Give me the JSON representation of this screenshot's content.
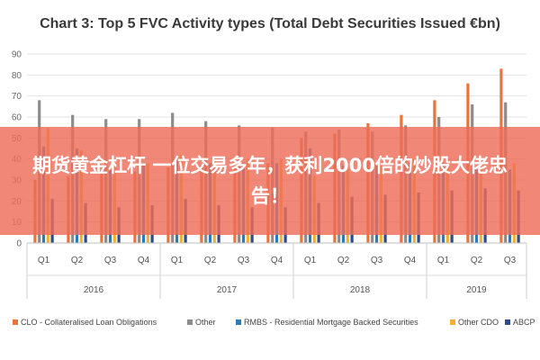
{
  "banner": {
    "text": "期货黄金杠杆 一位交易多年，获利2000倍的炒股大佬忠告！"
  },
  "chart_data": {
    "type": "bar",
    "title": "Chart 3: Top 5 FVC Activity types (Total Debt Securities Issued €bn)",
    "ylim": [
      0,
      90
    ],
    "yticks": [
      0,
      10,
      20,
      30,
      40,
      50,
      60,
      70,
      80,
      90
    ],
    "grid": true,
    "legend_position": "bottom",
    "categories": [
      "Q1",
      "Q2",
      "Q3",
      "Q4",
      "Q1",
      "Q2",
      "Q3",
      "Q4",
      "Q1",
      "Q2",
      "Q3",
      "Q4",
      "Q1",
      "Q2",
      "Q3"
    ],
    "groups": [
      {
        "label": "2016",
        "count": 4
      },
      {
        "label": "2017",
        "count": 4
      },
      {
        "label": "2018",
        "count": 4
      },
      {
        "label": "2019",
        "count": 3
      }
    ],
    "series": [
      {
        "name": "CLO - Collateralised Loan Obligations",
        "color": "#e8743b",
        "values": [
          30,
          32,
          33,
          34,
          36,
          37,
          37,
          38,
          50,
          52,
          57,
          61,
          68,
          76,
          83
        ]
      },
      {
        "name": "Other",
        "color": "#8c8c8c",
        "values": [
          68,
          61,
          59,
          59,
          62,
          58,
          56,
          55,
          53,
          54,
          53,
          56,
          60,
          66,
          67
        ]
      },
      {
        "name": "RMBS - Residential Mortgage Backed Securities",
        "color": "#2b7bb9",
        "values": [
          46,
          45,
          35,
          38,
          40,
          38,
          38,
          38,
          45,
          37,
          37,
          38,
          38,
          35,
          35
        ]
      },
      {
        "name": "Other CDO",
        "color": "#f2b134",
        "values": [
          55,
          44,
          38,
          38,
          42,
          40,
          40,
          40,
          32,
          35,
          37,
          40,
          40,
          36,
          38
        ]
      },
      {
        "name": "ABCP",
        "color": "#2f4a8a",
        "values": [
          21,
          19,
          17,
          18,
          21,
          18,
          17,
          17,
          19,
          22,
          23,
          24,
          25,
          26,
          25
        ]
      }
    ]
  }
}
